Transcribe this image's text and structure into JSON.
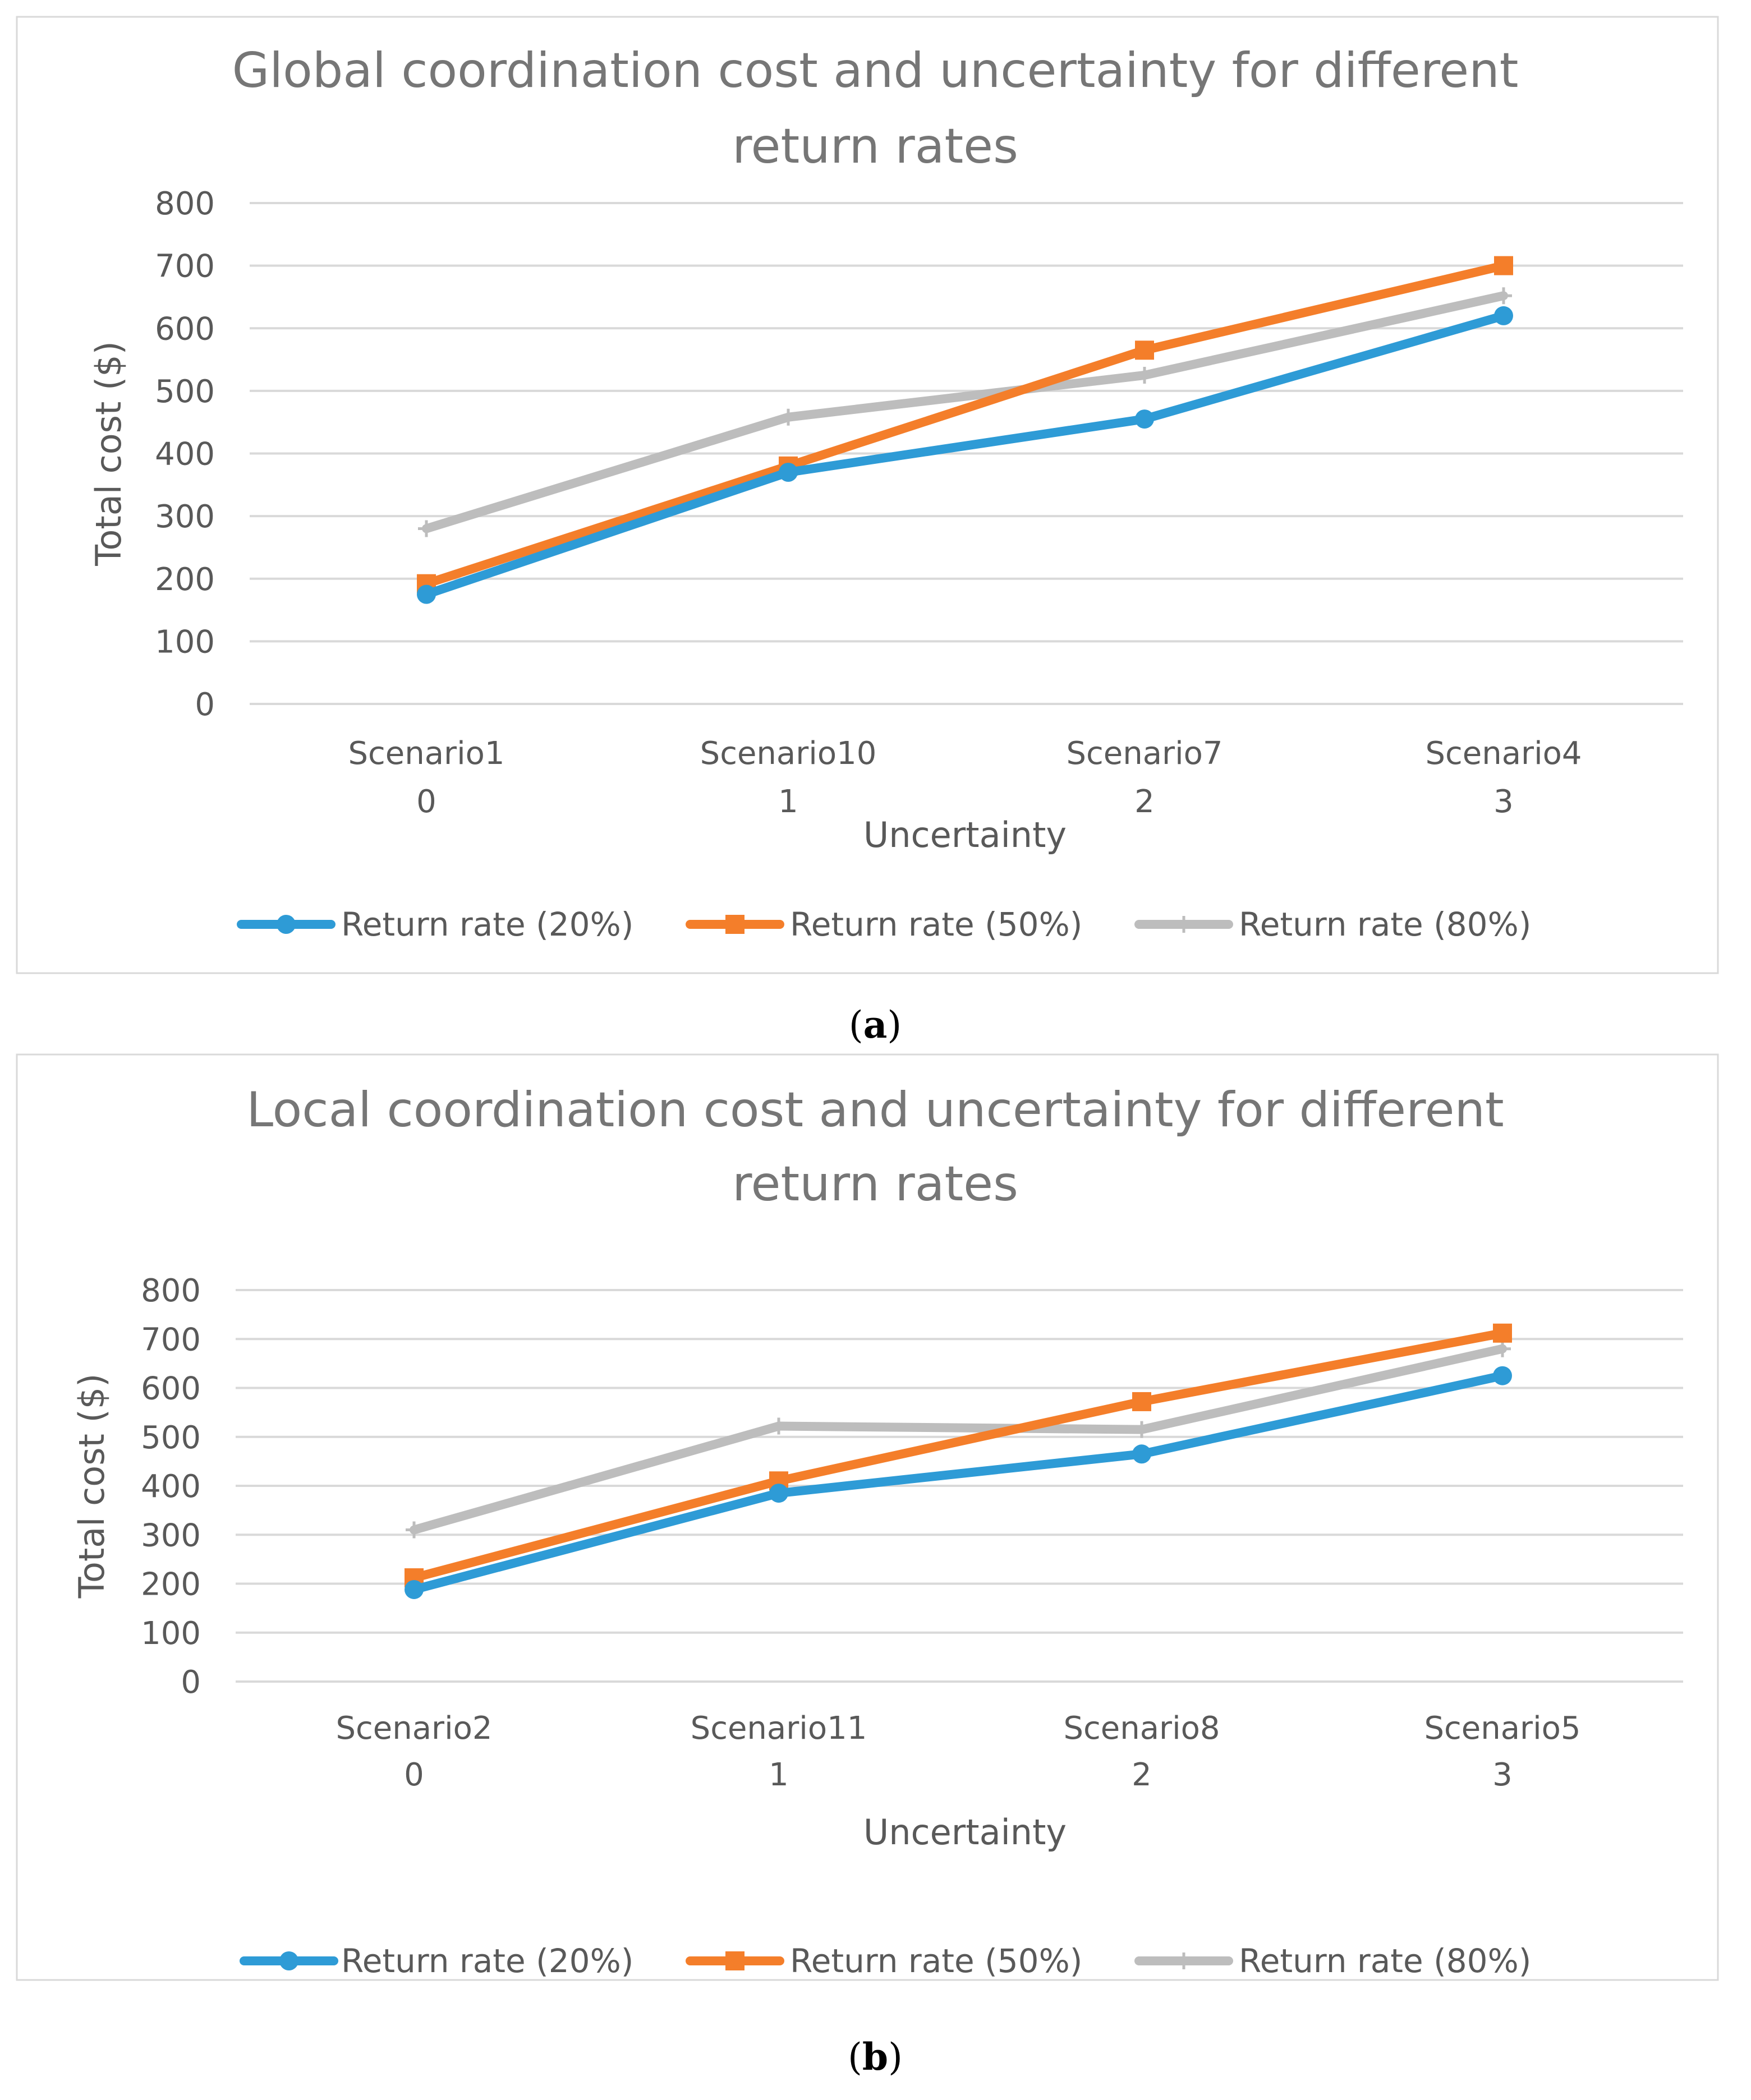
{
  "chart_data": [
    {
      "type": "line",
      "caption": "(a)",
      "caption_letter": "a",
      "title": [
        "Global coordination cost and uncertainty for different",
        "return rates"
      ],
      "xlabel": "Uncertainty",
      "ylabel": "Total cost ($)",
      "ylim": [
        0,
        800
      ],
      "yticks": [
        "0",
        "100",
        "200",
        "300",
        "400",
        "500",
        "600",
        "700",
        "800"
      ],
      "categories": [
        {
          "name": "Scenario1",
          "value": "0"
        },
        {
          "name": "Scenario10",
          "value": "1"
        },
        {
          "name": "Scenario7",
          "value": "2"
        },
        {
          "name": "Scenario4",
          "value": "3"
        }
      ],
      "grid": true,
      "legend_position": "bottom",
      "series": [
        {
          "name": "Return rate (20%)",
          "color": "#2E9BD6",
          "marker": "circle",
          "values": [
            175,
            370,
            455,
            620
          ]
        },
        {
          "name": "Return rate (50%)",
          "color": "#F47E2A",
          "marker": "square",
          "values": [
            192,
            380,
            565,
            700
          ]
        },
        {
          "name": "Return rate (80%)",
          "color": "#BDBDBD",
          "marker": "plus",
          "values": [
            280,
            458,
            525,
            652
          ]
        }
      ]
    },
    {
      "type": "line",
      "caption": "(b)",
      "caption_letter": "b",
      "title": [
        "Local coordination cost and uncertainty for different",
        "return rates"
      ],
      "xlabel": "Uncertainty",
      "ylabel": "Total cost ($)",
      "ylim": [
        0,
        800
      ],
      "yticks": [
        "0",
        "100",
        "200",
        "300",
        "400",
        "500",
        "600",
        "700",
        "800"
      ],
      "categories": [
        {
          "name": "Scenario2",
          "value": "0"
        },
        {
          "name": "Scenario11",
          "value": "1"
        },
        {
          "name": "Scenario8",
          "value": "2"
        },
        {
          "name": "Scenario5",
          "value": "3"
        }
      ],
      "grid": true,
      "legend_position": "bottom",
      "series": [
        {
          "name": "Return rate (20%)",
          "color": "#2E9BD6",
          "marker": "circle",
          "values": [
            188,
            385,
            465,
            625
          ]
        },
        {
          "name": "Return rate (50%)",
          "color": "#F47E2A",
          "marker": "square",
          "values": [
            212,
            410,
            572,
            712
          ]
        },
        {
          "name": "Return rate (80%)",
          "color": "#BDBDBD",
          "marker": "plus",
          "values": [
            310,
            522,
            515,
            680
          ]
        }
      ]
    }
  ]
}
